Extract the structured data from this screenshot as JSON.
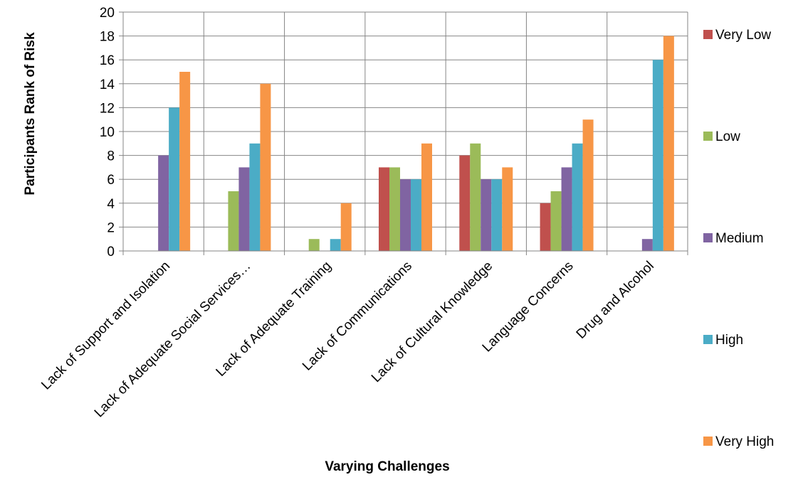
{
  "chart_data": {
    "type": "bar",
    "title": "",
    "xlabel": "Varying Challenges",
    "ylabel": "Participants Rank of Risk",
    "ylim": [
      0,
      20
    ],
    "yticks": [
      0,
      2,
      4,
      6,
      8,
      10,
      12,
      14,
      16,
      18,
      20
    ],
    "grid": true,
    "legend_position": "right",
    "categories": [
      "Lack of Support and Isolation",
      "Lack of Adequate Social Services…",
      "Lack of Adequate Training",
      "Lack of Communications",
      "Lack of Cultural Knowledge",
      "Language Concerns",
      "Drug and Alcohol"
    ],
    "series": [
      {
        "name": "Very Low",
        "color": "#C0504D",
        "values": [
          0,
          0,
          0,
          7,
          8,
          4,
          0
        ]
      },
      {
        "name": "Low",
        "color": "#9BBB59",
        "values": [
          0,
          5,
          1,
          7,
          9,
          5,
          0
        ]
      },
      {
        "name": "Medium",
        "color": "#8064A2",
        "values": [
          8,
          7,
          0,
          6,
          6,
          7,
          1
        ]
      },
      {
        "name": "High",
        "color": "#4BACC6",
        "values": [
          12,
          9,
          1,
          6,
          6,
          9,
          16
        ]
      },
      {
        "name": "Very High",
        "color": "#F79646",
        "values": [
          15,
          14,
          4,
          9,
          7,
          11,
          18
        ]
      }
    ]
  }
}
